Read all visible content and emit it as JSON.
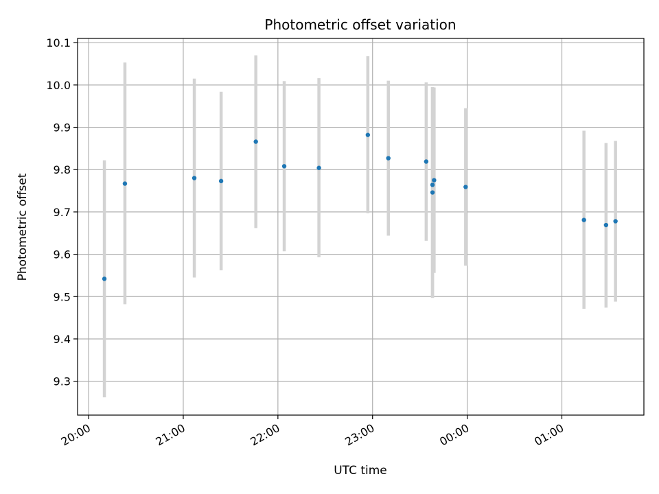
{
  "chart_data": {
    "type": "scatter",
    "title": "Photometric offset variation",
    "xlabel": "UTC time",
    "ylabel": "Photometric offset",
    "x_axis_kind": "time",
    "xlim": [
      "19:53",
      "01:52"
    ],
    "ylim": [
      9.22,
      10.11
    ],
    "grid": true,
    "x_ticks": [
      "20:00",
      "21:00",
      "22:00",
      "23:00",
      "00:00",
      "01:00"
    ],
    "y_ticks": [
      9.3,
      9.4,
      9.5,
      9.6,
      9.7,
      9.8,
      9.9,
      10.0,
      10.1
    ],
    "colors": {
      "points": "#1f77b4",
      "errorbars": "#d3d3d3",
      "grid": "#b0b0b0"
    },
    "points": [
      {
        "x": "20:10",
        "y": 9.542,
        "err_low": 9.262,
        "err_high": 9.822
      },
      {
        "x": "20:23",
        "y": 9.767,
        "err_low": 9.482,
        "err_high": 10.053
      },
      {
        "x": "21:07",
        "y": 9.78,
        "err_low": 9.545,
        "err_high": 10.015
      },
      {
        "x": "21:24",
        "y": 9.773,
        "err_low": 9.562,
        "err_high": 9.984
      },
      {
        "x": "21:46",
        "y": 9.866,
        "err_low": 9.662,
        "err_high": 10.07
      },
      {
        "x": "22:04",
        "y": 9.808,
        "err_low": 9.607,
        "err_high": 10.009
      },
      {
        "x": "22:26",
        "y": 9.804,
        "err_low": 9.593,
        "err_high": 10.016
      },
      {
        "x": "22:57",
        "y": 9.882,
        "err_low": 9.697,
        "err_high": 10.068
      },
      {
        "x": "23:10",
        "y": 9.827,
        "err_low": 9.644,
        "err_high": 10.01
      },
      {
        "x": "23:34",
        "y": 9.819,
        "err_low": 9.632,
        "err_high": 10.006
      },
      {
        "x": "23:38",
        "y": 9.764,
        "err_low": 9.497,
        "err_high": 9.995
      },
      {
        "x": "23:38",
        "y": 9.746,
        "err_low": 9.497,
        "err_high": 9.995
      },
      {
        "x": "23:39",
        "y": 9.775,
        "err_low": 9.556,
        "err_high": 9.994
      },
      {
        "x": "23:59",
        "y": 9.759,
        "err_low": 9.573,
        "err_high": 9.945
      },
      {
        "x": "01:14",
        "y": 9.681,
        "err_low": 9.471,
        "err_high": 9.892
      },
      {
        "x": "01:28",
        "y": 9.669,
        "err_low": 9.474,
        "err_high": 9.863
      },
      {
        "x": "01:34",
        "y": 9.678,
        "err_low": 9.488,
        "err_high": 9.868
      }
    ]
  }
}
